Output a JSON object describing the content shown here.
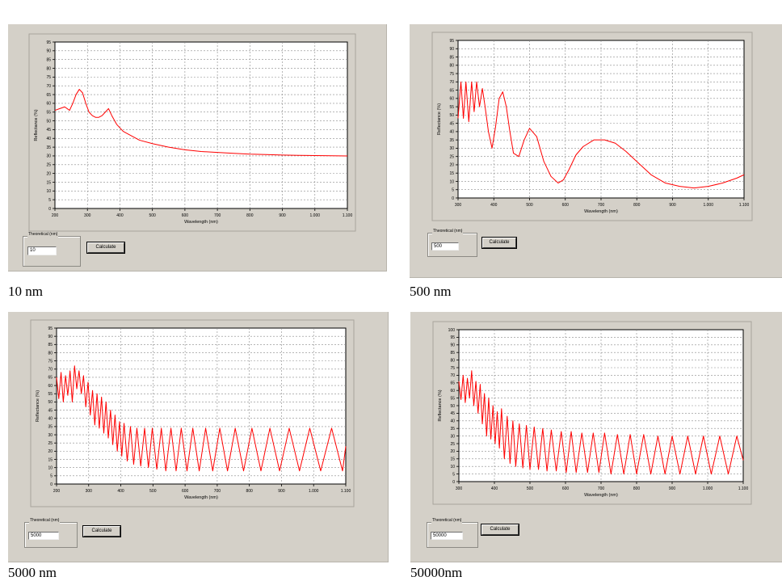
{
  "panels": [
    {
      "caption": "10 nm",
      "field_label": "Theoretical (nm)",
      "field_value": "10",
      "button_label": "Calculate"
    },
    {
      "caption": "500 nm",
      "field_label": "Theoretical (nm)",
      "field_value": "500",
      "button_label": "Calculate"
    },
    {
      "caption": "5000 nm",
      "field_label": "Theoretical (nm)",
      "field_value": "5000",
      "button_label": "Calculate"
    },
    {
      "caption": "50000nm",
      "field_label": "Theoretical (nm)",
      "field_value": "50000",
      "button_label": "Calculate"
    }
  ],
  "chart_data": [
    {
      "type": "line",
      "title": "",
      "xlabel": "Wavelength (nm)",
      "ylabel": "Reflectance (%)",
      "xlim": [
        200,
        1100
      ],
      "ylim": [
        0,
        95
      ],
      "xticks": [
        "200",
        "300",
        "400",
        "500",
        "600",
        "700",
        "800",
        "900",
        "1.000",
        "1.100"
      ],
      "yticks": [
        "0",
        "5",
        "10",
        "15",
        "20",
        "25",
        "30",
        "35",
        "40",
        "45",
        "50",
        "55",
        "60",
        "65",
        "70",
        "75",
        "80",
        "85",
        "90",
        "95"
      ],
      "grid": true,
      "line_color": "#ff0000",
      "series": [
        {
          "x": [
            200,
            215,
            230,
            245,
            255,
            265,
            275,
            285,
            295,
            305,
            315,
            325,
            335,
            345,
            355,
            365,
            375,
            390,
            410,
            430,
            460,
            500,
            550,
            600,
            650,
            700,
            750,
            800,
            850,
            900,
            950,
            1000,
            1050,
            1100
          ],
          "y": [
            56,
            57,
            58,
            56,
            60,
            65,
            68,
            66,
            60,
            55,
            53,
            52,
            52,
            53,
            55,
            57,
            53,
            48,
            44,
            42,
            39,
            37,
            35,
            33.5,
            32.5,
            32,
            31.5,
            31,
            30.8,
            30.5,
            30.3,
            30.2,
            30.1,
            30
          ]
        }
      ]
    },
    {
      "type": "line",
      "title": "",
      "xlabel": "Wavelength (nm)",
      "ylabel": "Reflectance (%)",
      "xlim": [
        300,
        1100
      ],
      "ylim": [
        0,
        95
      ],
      "xticks": [
        "300",
        "400",
        "500",
        "600",
        "700",
        "800",
        "900",
        "1.000",
        "1.100"
      ],
      "yticks": [
        "0",
        "5",
        "10",
        "15",
        "20",
        "25",
        "30",
        "35",
        "40",
        "45",
        "50",
        "55",
        "60",
        "65",
        "70",
        "75",
        "80",
        "85",
        "90",
        "95"
      ],
      "grid": true,
      "line_color": "#ff0000",
      "series": [
        {
          "x": [
            300,
            308,
            315,
            322,
            330,
            338,
            345,
            352,
            360,
            368,
            375,
            385,
            395,
            405,
            415,
            425,
            435,
            445,
            455,
            470,
            485,
            500,
            520,
            540,
            560,
            580,
            595,
            610,
            630,
            650,
            680,
            710,
            740,
            770,
            800,
            840,
            880,
            920,
            960,
            1000,
            1040,
            1080,
            1100
          ],
          "y": [
            48,
            70,
            48,
            70,
            46,
            70,
            52,
            70,
            55,
            66,
            56,
            40,
            30,
            43,
            60,
            64,
            55,
            40,
            27,
            25,
            35,
            42,
            37,
            22,
            13,
            9,
            11,
            17,
            26,
            31,
            35,
            35,
            33,
            28,
            22,
            14,
            9,
            7,
            6,
            7,
            9,
            12,
            14
          ]
        }
      ]
    },
    {
      "type": "line",
      "title": "",
      "xlabel": "Wavelength (nm)",
      "ylabel": "Reflectance (%)",
      "xlim": [
        200,
        1100
      ],
      "ylim": [
        0,
        95
      ],
      "xticks": [
        "200",
        "300",
        "400",
        "500",
        "600",
        "700",
        "800",
        "900",
        "1.000",
        "1.100"
      ],
      "yticks": [
        "0",
        "5",
        "10",
        "15",
        "20",
        "25",
        "30",
        "35",
        "40",
        "45",
        "50",
        "55",
        "60",
        "65",
        "70",
        "75",
        "80",
        "85",
        "90",
        "95"
      ],
      "grid": true,
      "line_color": "#ff0000",
      "series": [
        {
          "x": [
            200,
            207,
            214,
            221,
            228,
            235,
            242,
            249,
            256,
            263,
            270,
            277,
            284,
            291,
            298,
            305,
            312,
            319,
            326,
            333,
            340,
            347,
            354,
            361,
            368,
            375,
            382,
            389,
            396,
            403,
            410,
            420,
            430,
            440,
            450,
            462,
            474,
            486,
            498,
            512,
            526,
            540,
            556,
            572,
            588,
            606,
            624,
            644,
            664,
            686,
            708,
            732,
            756,
            782,
            808,
            836,
            864,
            894,
            924,
            956,
            988,
            1022,
            1056,
            1090,
            1100
          ],
          "y": [
            65,
            52,
            68,
            50,
            66,
            54,
            69,
            50,
            72,
            58,
            69,
            55,
            66,
            47,
            62,
            42,
            57,
            36,
            55,
            34,
            53,
            31,
            50,
            28,
            45,
            24,
            42,
            20,
            38,
            17,
            37,
            14,
            35,
            12,
            34,
            11,
            34,
            10,
            34,
            9,
            34,
            8,
            34,
            8,
            34,
            8,
            34,
            8,
            34,
            8,
            34,
            8,
            34,
            8,
            34,
            8,
            34,
            8,
            34,
            8,
            34,
            8,
            34,
            8,
            23
          ]
        }
      ]
    },
    {
      "type": "line",
      "title": "",
      "xlabel": "Wavelength (nm)",
      "ylabel": "Reflectance (%)",
      "xlim": [
        300,
        1100
      ],
      "ylim": [
        0,
        100
      ],
      "xticks": [
        "300",
        "400",
        "500",
        "600",
        "700",
        "800",
        "900",
        "1.000",
        "1.100"
      ],
      "yticks": [
        "0",
        "5",
        "10",
        "15",
        "20",
        "25",
        "30",
        "35",
        "40",
        "45",
        "50",
        "55",
        "60",
        "65",
        "70",
        "75",
        "80",
        "85",
        "90",
        "95",
        "100"
      ],
      "grid": true,
      "line_color": "#ff0000",
      "series": [
        {
          "x": [
            300,
            306,
            312,
            318,
            324,
            330,
            336,
            342,
            348,
            354,
            360,
            366,
            372,
            378,
            384,
            390,
            396,
            402,
            408,
            414,
            420,
            428,
            436,
            444,
            452,
            460,
            470,
            480,
            490,
            500,
            512,
            524,
            536,
            548,
            560,
            574,
            588,
            602,
            616,
            630,
            646,
            662,
            678,
            694,
            710,
            728,
            746,
            764,
            782,
            800,
            820,
            840,
            860,
            880,
            900,
            922,
            944,
            966,
            988,
            1010,
            1034,
            1058,
            1082,
            1100
          ],
          "y": [
            66,
            54,
            70,
            52,
            68,
            55,
            73,
            50,
            66,
            45,
            64,
            38,
            58,
            30,
            55,
            28,
            50,
            25,
            46,
            22,
            48,
            15,
            43,
            12,
            40,
            10,
            38,
            9,
            37,
            8,
            36,
            8,
            35,
            7,
            34,
            7,
            33,
            6,
            33,
            6,
            32,
            6,
            32,
            6,
            32,
            5,
            31,
            5,
            31,
            5,
            31,
            5,
            30,
            5,
            30,
            5,
            30,
            5,
            30,
            5,
            30,
            5,
            30,
            14
          ]
        }
      ]
    }
  ]
}
